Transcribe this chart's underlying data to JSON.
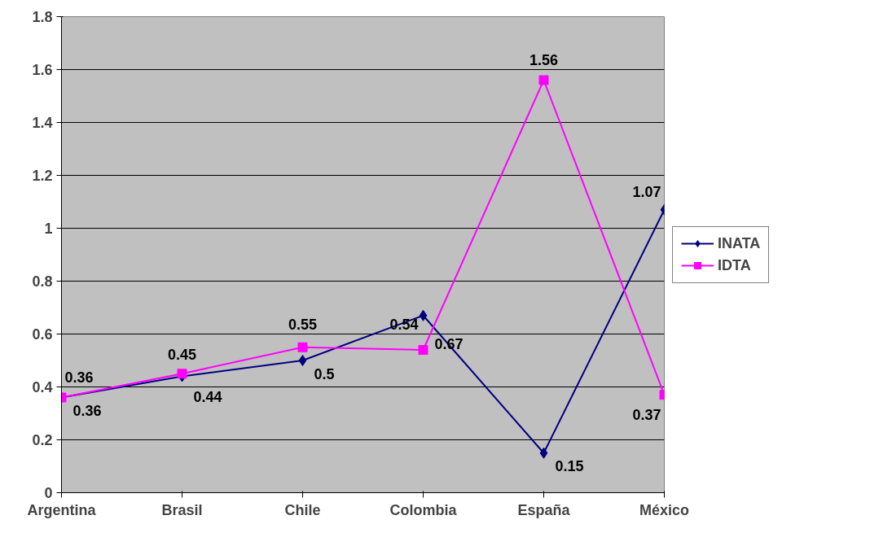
{
  "chart_data": {
    "type": "line",
    "categories": [
      "Argentina",
      "Brasil",
      "Chile",
      "Colombia",
      "España",
      "México"
    ],
    "series": [
      {
        "name": "INATA",
        "color": "#000080",
        "marker": "diamond",
        "values": [
          0.36,
          0.44,
          0.5,
          0.67,
          0.15,
          1.07
        ]
      },
      {
        "name": "IDTA",
        "color": "#ff00ff",
        "marker": "square",
        "values": [
          0.36,
          0.45,
          0.55,
          0.54,
          1.56,
          0.37
        ]
      }
    ],
    "ylim": [
      0,
      1.8
    ],
    "yticks": [
      0,
      0.2,
      0.4,
      0.6,
      0.8,
      1,
      1.2,
      1.4,
      1.6,
      1.8
    ],
    "grid": "y",
    "legend": "right",
    "data_labels": true
  }
}
